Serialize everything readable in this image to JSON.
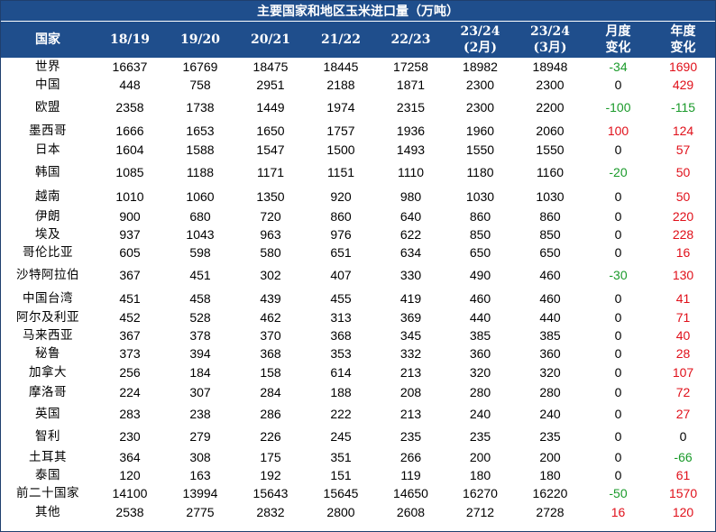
{
  "title": "主要国家和地区玉米进口量（万吨）",
  "colors": {
    "header_bg": "#1f4e8c",
    "negative": "#1a9a2a",
    "positive": "#e0101a"
  },
  "headers": [
    {
      "line1": "国家",
      "line2": ""
    },
    {
      "line1": "18/19",
      "line2": ""
    },
    {
      "line1": "19/20",
      "line2": ""
    },
    {
      "line1": "20/21",
      "line2": ""
    },
    {
      "line1": "21/22",
      "line2": ""
    },
    {
      "line1": "22/23",
      "line2": ""
    },
    {
      "line1": "23/24",
      "line2": "(2月)"
    },
    {
      "line1": "23/24",
      "line2": "(3月)"
    },
    {
      "line1": "月度",
      "line2": "变化"
    },
    {
      "line1": "年度",
      "line2": "变化"
    }
  ],
  "rows": [
    {
      "country": "世界",
      "values": [
        "16637",
        "16769",
        "18475",
        "18445",
        "17258",
        "18982",
        "18948"
      ],
      "monthly": "-34",
      "annual": "1690"
    },
    {
      "country": "中国",
      "values": [
        "448",
        "758",
        "2951",
        "2188",
        "1871",
        "2300",
        "2300"
      ],
      "monthly": "0",
      "annual": "429"
    },
    {
      "country": "欧盟",
      "values": [
        "2358",
        "1738",
        "1449",
        "1974",
        "2315",
        "2300",
        "2200"
      ],
      "monthly": "-100",
      "annual": "-115"
    },
    {
      "country": "墨西哥",
      "values": [
        "1666",
        "1653",
        "1650",
        "1757",
        "1936",
        "1960",
        "2060"
      ],
      "monthly": "100",
      "annual": "124"
    },
    {
      "country": "日本",
      "values": [
        "1604",
        "1588",
        "1547",
        "1500",
        "1493",
        "1550",
        "1550"
      ],
      "monthly": "0",
      "annual": "57"
    },
    {
      "country": "韩国",
      "values": [
        "1085",
        "1188",
        "1171",
        "1151",
        "1110",
        "1180",
        "1160"
      ],
      "monthly": "-20",
      "annual": "50"
    },
    {
      "country": "越南",
      "values": [
        "1010",
        "1060",
        "1350",
        "920",
        "980",
        "1030",
        "1030"
      ],
      "monthly": "0",
      "annual": "50"
    },
    {
      "country": "伊朗",
      "values": [
        "900",
        "680",
        "720",
        "860",
        "640",
        "860",
        "860"
      ],
      "monthly": "0",
      "annual": "220"
    },
    {
      "country": "埃及",
      "values": [
        "937",
        "1043",
        "963",
        "976",
        "622",
        "850",
        "850"
      ],
      "monthly": "0",
      "annual": "228"
    },
    {
      "country": "哥伦比亚",
      "values": [
        "605",
        "598",
        "580",
        "651",
        "634",
        "650",
        "650"
      ],
      "monthly": "0",
      "annual": "16"
    },
    {
      "country": "沙特阿拉伯",
      "values": [
        "367",
        "451",
        "302",
        "407",
        "330",
        "490",
        "460"
      ],
      "monthly": "-30",
      "annual": "130"
    },
    {
      "country": "中国台湾",
      "values": [
        "451",
        "458",
        "439",
        "455",
        "419",
        "460",
        "460"
      ],
      "monthly": "0",
      "annual": "41"
    },
    {
      "country": "阿尔及利亚",
      "values": [
        "452",
        "528",
        "462",
        "313",
        "369",
        "440",
        "440"
      ],
      "monthly": "0",
      "annual": "71"
    },
    {
      "country": "马来西亚",
      "values": [
        "367",
        "378",
        "370",
        "368",
        "345",
        "385",
        "385"
      ],
      "monthly": "0",
      "annual": "40"
    },
    {
      "country": "秘鲁",
      "values": [
        "373",
        "394",
        "368",
        "353",
        "332",
        "360",
        "360"
      ],
      "monthly": "0",
      "annual": "28"
    },
    {
      "country": "加拿大",
      "values": [
        "256",
        "184",
        "158",
        "614",
        "213",
        "320",
        "320"
      ],
      "monthly": "0",
      "annual": "107"
    },
    {
      "country": "摩洛哥",
      "values": [
        "224",
        "307",
        "284",
        "188",
        "208",
        "280",
        "280"
      ],
      "monthly": "0",
      "annual": "72"
    },
    {
      "country": "英国",
      "values": [
        "283",
        "238",
        "286",
        "222",
        "213",
        "240",
        "240"
      ],
      "monthly": "0",
      "annual": "27"
    },
    {
      "country": "智利",
      "values": [
        "230",
        "279",
        "226",
        "245",
        "235",
        "235",
        "235"
      ],
      "monthly": "0",
      "annual": "0"
    },
    {
      "country": "土耳其",
      "values": [
        "364",
        "308",
        "175",
        "351",
        "266",
        "200",
        "200"
      ],
      "monthly": "0",
      "annual": "-66"
    },
    {
      "country": "泰国",
      "values": [
        "120",
        "163",
        "192",
        "151",
        "119",
        "180",
        "180"
      ],
      "monthly": "0",
      "annual": "61"
    },
    {
      "country": "前二十国家",
      "values": [
        "14100",
        "13994",
        "15643",
        "15645",
        "14650",
        "16270",
        "16220"
      ],
      "monthly": "-50",
      "annual": "1570"
    },
    {
      "country": "其他",
      "values": [
        "2538",
        "2775",
        "2832",
        "2800",
        "2608",
        "2712",
        "2728"
      ],
      "monthly": "16",
      "annual": "120"
    }
  ]
}
